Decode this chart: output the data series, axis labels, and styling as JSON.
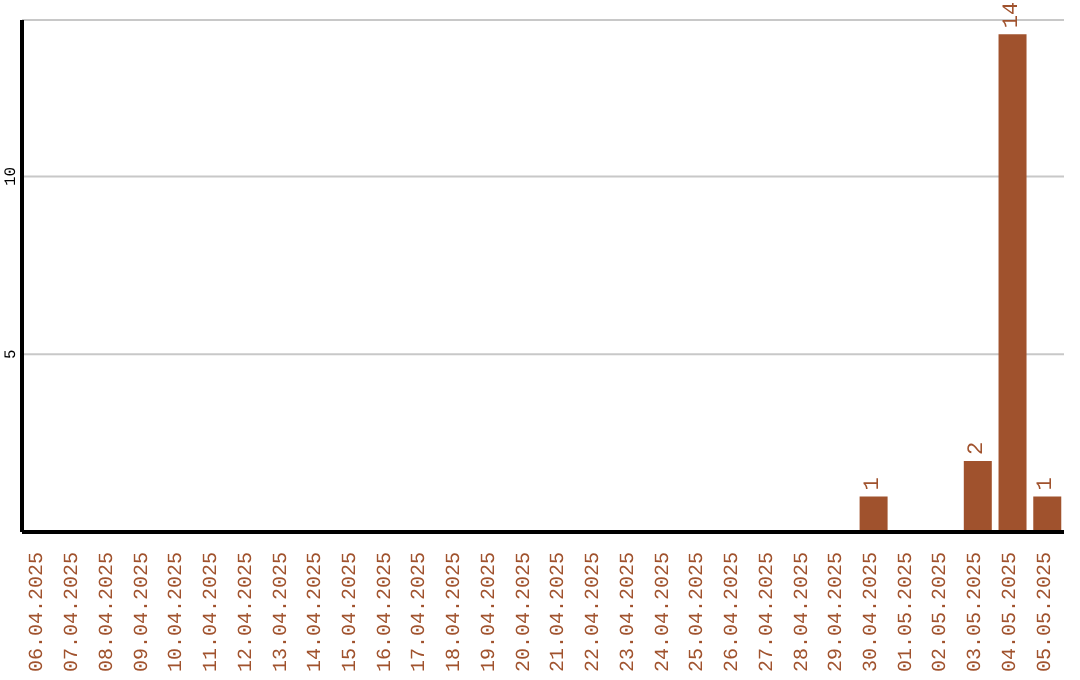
{
  "chart_data": {
    "type": "bar",
    "categories": [
      "06.04.2025",
      "07.04.2025",
      "08.04.2025",
      "09.04.2025",
      "10.04.2025",
      "11.04.2025",
      "12.04.2025",
      "13.04.2025",
      "14.04.2025",
      "15.04.2025",
      "16.04.2025",
      "17.04.2025",
      "18.04.2025",
      "19.04.2025",
      "20.04.2025",
      "21.04.2025",
      "22.04.2025",
      "23.04.2025",
      "24.04.2025",
      "25.04.2025",
      "26.04.2025",
      "27.04.2025",
      "28.04.2025",
      "29.04.2025",
      "30.04.2025",
      "01.05.2025",
      "02.05.2025",
      "03.05.2025",
      "04.05.2025",
      "05.05.2025"
    ],
    "values": [
      0,
      0,
      0,
      0,
      0,
      0,
      0,
      0,
      0,
      0,
      0,
      0,
      0,
      0,
      0,
      0,
      0,
      0,
      0,
      0,
      0,
      0,
      0,
      0,
      1,
      0,
      0,
      2,
      14,
      1
    ],
    "value_labels": [
      null,
      null,
      null,
      null,
      null,
      null,
      null,
      null,
      null,
      null,
      null,
      null,
      null,
      null,
      null,
      null,
      null,
      null,
      null,
      null,
      null,
      null,
      null,
      null,
      "1",
      null,
      null,
      "2",
      "14",
      "1"
    ],
    "color": "#a0522d",
    "ylim": [
      0,
      14.4
    ],
    "yticks": [
      5,
      10
    ],
    "grid": "y"
  }
}
